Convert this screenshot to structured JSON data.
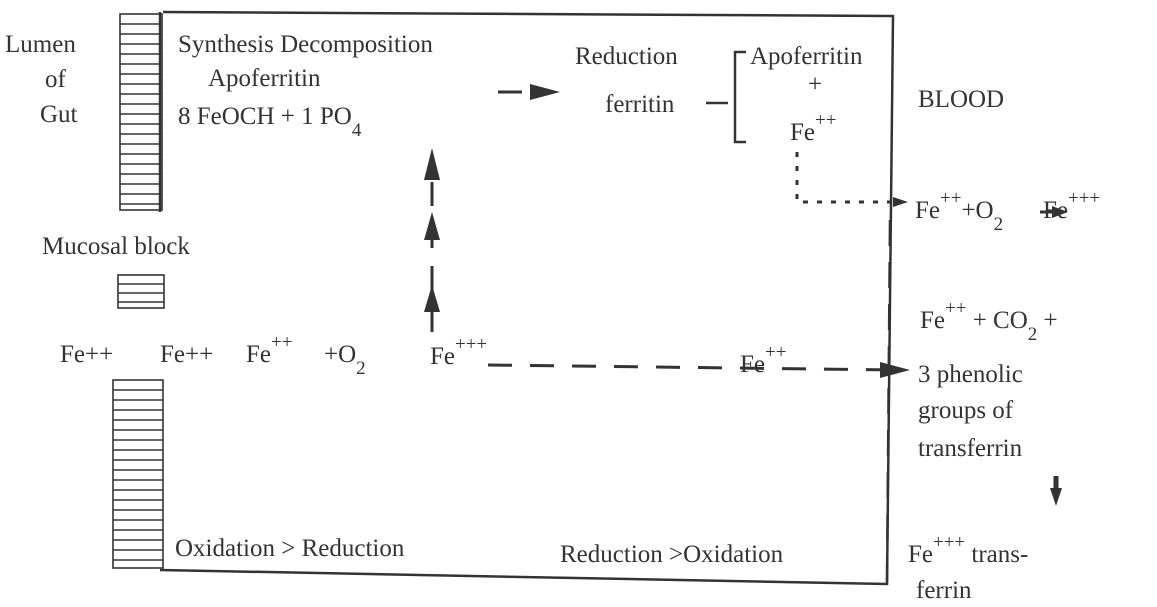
{
  "labels": [
    [
      {
        "text": "Lumen"
      }
    ],
    [
      {
        "text": "of"
      }
    ],
    [
      {
        "text": "Gut"
      }
    ],
    [
      {
        "text": "Synthesis Decomposition"
      }
    ],
    [
      {
        "text": "Apoferritin"
      }
    ],
    [
      {
        "text": "8 FeOCH + 1 PO"
      },
      {
        "text": "4",
        "script": "sub"
      }
    ],
    [
      {
        "text": "Reduction"
      }
    ],
    [
      {
        "text": "ferritin"
      }
    ],
    [
      {
        "text": "Apoferritin"
      }
    ],
    [
      {
        "text": "+"
      }
    ],
    [
      {
        "text": "Fe"
      },
      {
        "text": "++",
        "script": "sup"
      }
    ],
    [
      {
        "text": "BLOOD"
      }
    ],
    [
      {
        "text": "Fe"
      },
      {
        "text": "++",
        "script": "sup"
      },
      {
        "text": "+O"
      },
      {
        "text": "2",
        "script": "sub"
      }
    ],
    [
      {
        "text": "Fe"
      },
      {
        "text": "+++",
        "script": "sup"
      }
    ],
    [
      {
        "text": "Mucosal block"
      }
    ],
    [
      {
        "text": "Fe++"
      }
    ],
    [
      {
        "text": "Fe++"
      }
    ],
    [
      {
        "text": "Fe"
      },
      {
        "text": "++",
        "script": "sup"
      }
    ],
    [
      {
        "text": "+O"
      },
      {
        "text": "2",
        "script": "sub"
      }
    ],
    [
      {
        "text": "Fe"
      },
      {
        "text": "+++",
        "script": "sup"
      }
    ],
    [
      {
        "text": "Fe"
      },
      {
        "text": "++",
        "script": "sup"
      }
    ],
    [
      {
        "text": "Fe"
      },
      {
        "text": "++",
        "script": "sup"
      },
      {
        "text": " + CO"
      },
      {
        "text": "2",
        "script": "sub"
      },
      {
        "text": " +"
      }
    ],
    [
      {
        "text": "3 phenolic"
      }
    ],
    [
      {
        "text": "groups of"
      }
    ],
    [
      {
        "text": "transferrin"
      }
    ],
    [
      {
        "text": "Fe"
      },
      {
        "text": "+++",
        "script": "sup"
      },
      {
        "text": " trans-"
      }
    ],
    [
      {
        "text": "ferrin"
      }
    ],
    [
      {
        "text": "Oxidation  > Reduction"
      }
    ],
    [
      {
        "text": "Reduction >Oxidation"
      }
    ]
  ]
}
